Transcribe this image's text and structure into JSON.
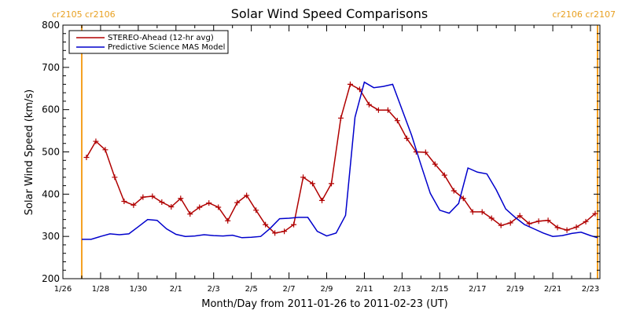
{
  "chart_data": {
    "type": "line",
    "title": "Solar Wind Speed Comparisons",
    "xlabel": "Month/Day from 2011-01-26 to 2011-02-23 (UT)",
    "ylabel": "Solar Wind Speed (km/s)",
    "xlim": [
      "2011-01-26",
      "2011-02-23T12:00"
    ],
    "ylim": [
      200,
      800
    ],
    "y_ticks": [
      200,
      300,
      400,
      500,
      600,
      700,
      800
    ],
    "x_ticks": [
      {
        "date": "2011-01-26",
        "label": "1/26"
      },
      {
        "date": "2011-01-28",
        "label": "1/28"
      },
      {
        "date": "2011-01-30",
        "label": "1/30"
      },
      {
        "date": "2011-02-01",
        "label": "2/1"
      },
      {
        "date": "2011-02-03",
        "label": "2/3"
      },
      {
        "date": "2011-02-05",
        "label": "2/5"
      },
      {
        "date": "2011-02-07",
        "label": "2/7"
      },
      {
        "date": "2011-02-09",
        "label": "2/9"
      },
      {
        "date": "2011-02-11",
        "label": "2/11"
      },
      {
        "date": "2011-02-13",
        "label": "2/13"
      },
      {
        "date": "2011-02-15",
        "label": "2/15"
      },
      {
        "date": "2011-02-17",
        "label": "2/17"
      },
      {
        "date": "2011-02-19",
        "label": "2/19"
      },
      {
        "date": "2011-02-21",
        "label": "2/21"
      },
      {
        "date": "2011-02-23",
        "label": "2/23"
      }
    ],
    "legend_position": "top-left",
    "markers": [
      {
        "date": "2011-01-27",
        "label": "cr2105 cr2106",
        "color": "#f5a020"
      },
      {
        "date": "2011-02-23T09:00",
        "label": "cr2106 cr2107",
        "color": "#f5a020"
      }
    ],
    "series": [
      {
        "name": "STEREO-Ahead (12-hr avg)",
        "color": "#b00000",
        "marker": "plus",
        "x": [
          "2011-01-27T06:00",
          "2011-01-27T18:00",
          "2011-01-28T06:00",
          "2011-01-28T18:00",
          "2011-01-29T06:00",
          "2011-01-29T18:00",
          "2011-01-30T06:00",
          "2011-01-30T18:00",
          "2011-01-31T06:00",
          "2011-01-31T18:00",
          "2011-02-01T06:00",
          "2011-02-01T18:00",
          "2011-02-02T06:00",
          "2011-02-02T18:00",
          "2011-02-03T06:00",
          "2011-02-03T18:00",
          "2011-02-04T06:00",
          "2011-02-04T18:00",
          "2011-02-05T06:00",
          "2011-02-05T18:00",
          "2011-02-06T06:00",
          "2011-02-06T18:00",
          "2011-02-07T06:00",
          "2011-02-07T18:00",
          "2011-02-08T06:00",
          "2011-02-08T18:00",
          "2011-02-09T06:00",
          "2011-02-09T18:00",
          "2011-02-10T06:00",
          "2011-02-10T18:00",
          "2011-02-11T06:00",
          "2011-02-11T18:00",
          "2011-02-12T06:00",
          "2011-02-12T18:00",
          "2011-02-13T06:00",
          "2011-02-13T18:00",
          "2011-02-14T06:00",
          "2011-02-14T18:00",
          "2011-02-15T06:00",
          "2011-02-15T18:00",
          "2011-02-16T06:00",
          "2011-02-16T18:00",
          "2011-02-17T06:00",
          "2011-02-17T18:00",
          "2011-02-18T06:00",
          "2011-02-18T18:00",
          "2011-02-19T06:00",
          "2011-02-19T18:00",
          "2011-02-20T06:00",
          "2011-02-20T18:00",
          "2011-02-21T06:00",
          "2011-02-21T18:00",
          "2011-02-22T06:00",
          "2011-02-22T18:00",
          "2011-02-23T06:00"
        ],
        "y": [
          487,
          525,
          505,
          440,
          383,
          374,
          393,
          395,
          381,
          370,
          390,
          353,
          369,
          379,
          369,
          337,
          380,
          397,
          362,
          328,
          308,
          312,
          328,
          440,
          425,
          385,
          425,
          580,
          660,
          648,
          612,
          599,
          599,
          574,
          532,
          500,
          499,
          471,
          445,
          408,
          390,
          358,
          358,
          343,
          326,
          332,
          349,
          330,
          336,
          338,
          321,
          315,
          322,
          335,
          354
        ]
      },
      {
        "name": "Predictive Science MAS Model",
        "color": "#0000cc",
        "marker": "none",
        "x": [
          "2011-01-27",
          "2011-01-27T12:00",
          "2011-01-28",
          "2011-01-28T12:00",
          "2011-01-29",
          "2011-01-29T12:00",
          "2011-01-30",
          "2011-01-30T12:00",
          "2011-01-31",
          "2011-01-31T12:00",
          "2011-02-01",
          "2011-02-01T12:00",
          "2011-02-02",
          "2011-02-02T12:00",
          "2011-02-03",
          "2011-02-03T12:00",
          "2011-02-04",
          "2011-02-04T12:00",
          "2011-02-05",
          "2011-02-05T12:00",
          "2011-02-06",
          "2011-02-06T12:00",
          "2011-02-07",
          "2011-02-07T12:00",
          "2011-02-08",
          "2011-02-08T12:00",
          "2011-02-09",
          "2011-02-09T12:00",
          "2011-02-10",
          "2011-02-10T12:00",
          "2011-02-11",
          "2011-02-11T12:00",
          "2011-02-12",
          "2011-02-12T12:00",
          "2011-02-13",
          "2011-02-13T12:00",
          "2011-02-14",
          "2011-02-14T12:00",
          "2011-02-15",
          "2011-02-15T12:00",
          "2011-02-16",
          "2011-02-16T12:00",
          "2011-02-17",
          "2011-02-17T12:00",
          "2011-02-18",
          "2011-02-18T12:00",
          "2011-02-19",
          "2011-02-19T12:00",
          "2011-02-20",
          "2011-02-20T12:00",
          "2011-02-21",
          "2011-02-21T12:00",
          "2011-02-22",
          "2011-02-22T12:00",
          "2011-02-23",
          "2011-02-23T09:00"
        ],
        "y": [
          293,
          293,
          300,
          306,
          304,
          306,
          323,
          340,
          338,
          318,
          305,
          300,
          301,
          304,
          302,
          301,
          303,
          297,
          298,
          300,
          319,
          342,
          343,
          345,
          345,
          312,
          301,
          308,
          350,
          582,
          665,
          652,
          655,
          660,
          600,
          540,
          470,
          402,
          362,
          355,
          378,
          462,
          452,
          448,
          410,
          365,
          345,
          328,
          318,
          308,
          300,
          302,
          307,
          310,
          302,
          297
        ]
      }
    ]
  }
}
